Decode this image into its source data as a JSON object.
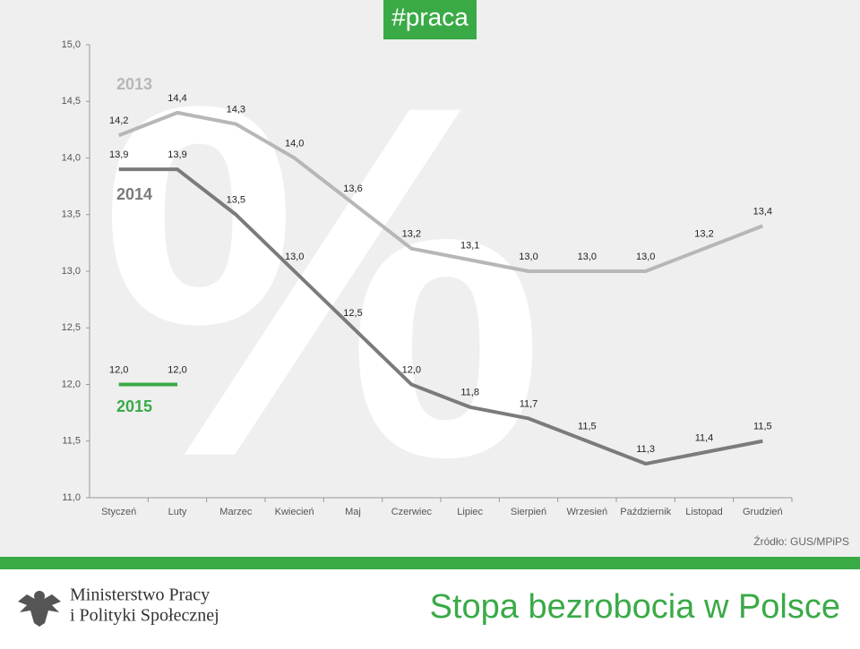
{
  "header": {
    "tag": "#praca"
  },
  "chart_data": {
    "type": "line",
    "watermark": "%",
    "categories": [
      "Styczeń",
      "Luty",
      "Marzec",
      "Kwiecień",
      "Maj",
      "Czerwiec",
      "Lipiec",
      "Sierpień",
      "Wrzesień",
      "Październik",
      "Listopad",
      "Grudzień"
    ],
    "series": [
      {
        "name": "2013",
        "color": "#b7b7b7",
        "values": [
          14.2,
          14.4,
          14.3,
          14.0,
          13.6,
          13.2,
          13.1,
          13.0,
          13.0,
          13.0,
          13.2,
          13.4
        ],
        "value_labels": [
          "14,2",
          "14,4",
          "14,3",
          "14,0",
          "13,6",
          "13,2",
          "13,1",
          "13,0",
          "13,0",
          "13,0",
          "13,2",
          "13,4"
        ]
      },
      {
        "name": "2014",
        "color": "#7b7b7b",
        "values": [
          13.9,
          13.9,
          13.5,
          13.0,
          12.5,
          12.0,
          11.8,
          11.7,
          11.5,
          11.3,
          11.4,
          11.5
        ],
        "value_labels": [
          "13,9",
          "13,9",
          "13,5",
          "13,0",
          "12,5",
          "12,0",
          "11,8",
          "11,7",
          "11,5",
          "11,3",
          "11,4",
          "11,5"
        ]
      },
      {
        "name": "2015",
        "color": "#3aaa47",
        "values": [
          12.0,
          12.0,
          null,
          null,
          null,
          null,
          null,
          null,
          null,
          null,
          null,
          null
        ],
        "value_labels": [
          "12,0",
          "12,0",
          null,
          null,
          null,
          null,
          null,
          null,
          null,
          null,
          null,
          null
        ]
      }
    ],
    "ylim": [
      11.0,
      15.0
    ],
    "yticks": [
      {
        "value": 11.0,
        "label": "11,0"
      },
      {
        "value": 11.5,
        "label": "11,5"
      },
      {
        "value": 12.0,
        "label": "12,0"
      },
      {
        "value": 12.5,
        "label": "12,5"
      },
      {
        "value": 13.0,
        "label": "13,0"
      },
      {
        "value": 13.5,
        "label": "13,5"
      },
      {
        "value": 14.0,
        "label": "14,0"
      },
      {
        "value": 14.5,
        "label": "14,5"
      },
      {
        "value": 15.0,
        "label": "15,0"
      }
    ],
    "source": "Źródło: GUS/MPiPS"
  },
  "footer": {
    "ministry_line1": "Ministerstwo Pracy",
    "ministry_line2": "i Polityki Społecznej",
    "title": "Stopa bezrobocia w Polsce"
  }
}
